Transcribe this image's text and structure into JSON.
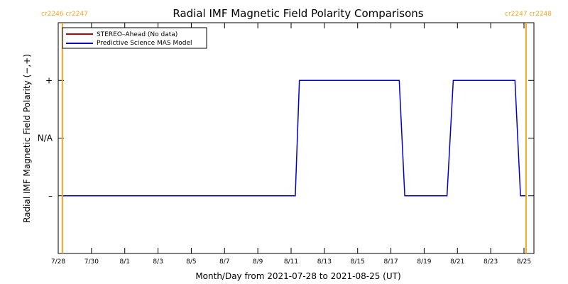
{
  "chart_data": {
    "type": "line",
    "title": "Radial IMF Magnetic Field Polarity Comparisons",
    "xlabel": "Month/Day from 2021-07-28 to 2021-08-25 (UT)",
    "ylabel": "Radial IMF Magnetic Field Polarity (−,+)",
    "xlim": [
      "2021-07-28",
      "2021-08-25"
    ],
    "x_ticks": [
      {
        "date": "2021-07-28",
        "label": "7/28"
      },
      {
        "date": "2021-07-30",
        "label": "7/30"
      },
      {
        "date": "2021-08-01",
        "label": "8/1"
      },
      {
        "date": "2021-08-03",
        "label": "8/3"
      },
      {
        "date": "2021-08-05",
        "label": "8/5"
      },
      {
        "date": "2021-08-07",
        "label": "8/7"
      },
      {
        "date": "2021-08-09",
        "label": "8/9"
      },
      {
        "date": "2021-08-11",
        "label": "8/11"
      },
      {
        "date": "2021-08-13",
        "label": "8/13"
      },
      {
        "date": "2021-08-15",
        "label": "8/15"
      },
      {
        "date": "2021-08-17",
        "label": "8/17"
      },
      {
        "date": "2021-08-19",
        "label": "8/19"
      },
      {
        "date": "2021-08-21",
        "label": "8/21"
      },
      {
        "date": "2021-08-23",
        "label": "8/23"
      },
      {
        "date": "2021-08-25",
        "label": "8/25"
      }
    ],
    "y_ticks": [
      {
        "value": 1,
        "label": "+"
      },
      {
        "value": 0,
        "label": "N/A"
      },
      {
        "value": -1,
        "label": "–"
      }
    ],
    "ylim": [
      -2,
      2
    ],
    "grid": false,
    "legend_position": "top-left",
    "series": [
      {
        "name": "STEREO–Ahead (No data)",
        "color": "#c00000",
        "points": []
      },
      {
        "name": "Predictive Science MAS Model",
        "color": "#0000cc",
        "points": [
          {
            "x": "2021-07-28T07:00",
            "y": -1
          },
          {
            "x": "2021-08-11T06:00",
            "y": -1
          },
          {
            "x": "2021-08-11T12:00",
            "y": 1
          },
          {
            "x": "2021-08-17T12:00",
            "y": 1
          },
          {
            "x": "2021-08-17T20:00",
            "y": -1
          },
          {
            "x": "2021-08-20T09:00",
            "y": -1
          },
          {
            "x": "2021-08-20T18:00",
            "y": 1
          },
          {
            "x": "2021-08-24T11:00",
            "y": 1
          },
          {
            "x": "2021-08-24T19:00",
            "y": -1
          },
          {
            "x": "2021-08-25T02:00",
            "y": -1
          }
        ]
      }
    ],
    "carrington_markers": [
      {
        "x": "2021-07-28T06:00",
        "label": "cr2246 cr2247",
        "side": "left",
        "color": "#f5a623"
      },
      {
        "x": "2021-08-25T03:00",
        "label": "cr2247 cr2248",
        "side": "right",
        "color": "#f5a623"
      }
    ]
  }
}
